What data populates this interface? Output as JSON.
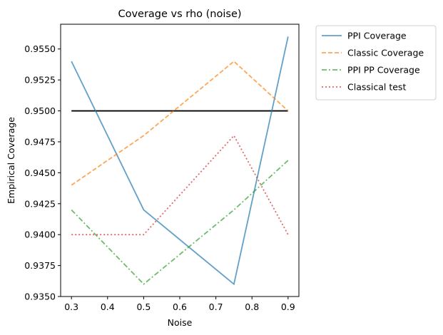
{
  "chart_data": {
    "type": "line",
    "title": "Coverage vs rho (noise)",
    "xlabel": "Noise",
    "ylabel": "Empirical Coverage",
    "xlim": [
      0.27,
      0.93
    ],
    "ylim": [
      0.935,
      0.957
    ],
    "xticks": [
      "0.3",
      "0.4",
      "0.5",
      "0.6",
      "0.7",
      "0.8",
      "0.9"
    ],
    "yticks": [
      "0.9350",
      "0.9375",
      "0.9400",
      "0.9425",
      "0.9450",
      "0.9475",
      "0.9500",
      "0.9525",
      "0.9550"
    ],
    "x": [
      0.3,
      0.5,
      0.75,
      0.9
    ],
    "reference_line": {
      "y": 0.95,
      "color": "#000000"
    },
    "legend_position": "outside-top-right",
    "grid": false,
    "series": [
      {
        "name": "PPI Coverage",
        "values": [
          0.954,
          0.942,
          0.936,
          0.956
        ],
        "color": "#1f77b4",
        "style": "solid"
      },
      {
        "name": "Classic Coverage",
        "values": [
          0.944,
          0.948,
          0.954,
          0.95
        ],
        "color": "#ff7f0e",
        "style": "dashed"
      },
      {
        "name": "PPI PP Coverage",
        "values": [
          0.942,
          0.936,
          0.942,
          0.946
        ],
        "color": "#2ca02c",
        "style": "dashdot"
      },
      {
        "name": "Classical test",
        "values": [
          0.94,
          0.94,
          0.948,
          0.94
        ],
        "color": "#d62728",
        "style": "dotted"
      }
    ]
  }
}
